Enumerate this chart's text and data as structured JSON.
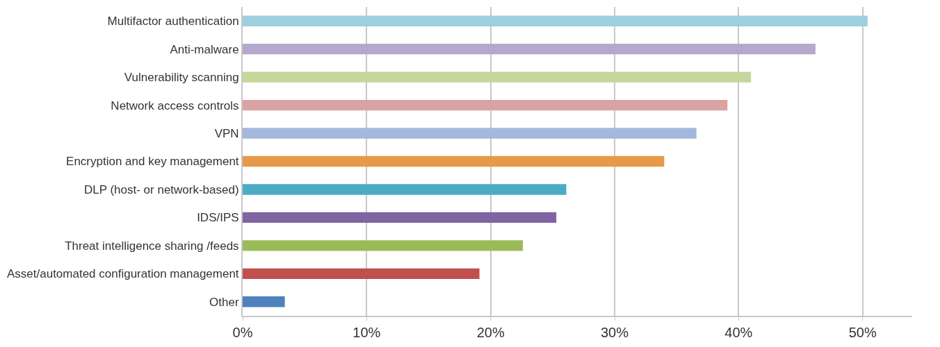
{
  "chart_data": {
    "type": "bar",
    "orientation": "horizontal",
    "categories": [
      "Multifactor authentication",
      "Anti-malware",
      "Vulnerability scanning",
      "Network access controls",
      "VPN",
      "Encryption and key management",
      "DLP (host- or network-based)",
      "IDS/IPS",
      "Threat intelligence sharing /feeds",
      "Asset/automated configuration management",
      "Other"
    ],
    "values": [
      50.4,
      46.2,
      41.0,
      39.1,
      36.6,
      34.0,
      26.1,
      25.3,
      22.6,
      19.1,
      3.4
    ],
    "colors": [
      "#9ecfe0",
      "#b4a9cc",
      "#c4d79b",
      "#d9a3a3",
      "#a3b8dc",
      "#e6994b",
      "#4bacc6",
      "#8064a2",
      "#9bbb59",
      "#c0504d",
      "#4f81bd"
    ],
    "xlim": [
      0,
      54
    ],
    "xticks": [
      {
        "value": 0,
        "label": "0%"
      },
      {
        "value": 10,
        "label": "10%"
      },
      {
        "value": 20,
        "label": "20%"
      },
      {
        "value": 30,
        "label": "30%"
      },
      {
        "value": 40,
        "label": "40%"
      },
      {
        "value": 50,
        "label": "50%"
      }
    ],
    "grid": "x"
  }
}
